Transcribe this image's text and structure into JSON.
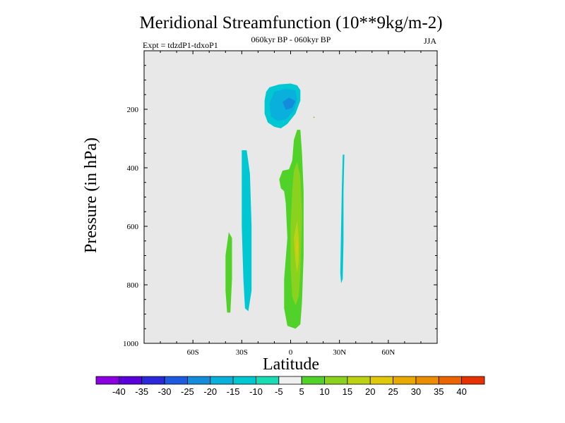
{
  "chart_data": {
    "type": "contour",
    "title": "Meridional Streamfunction (10**9kg/m-2)",
    "subtitle_left": "Expt = tdzdP1-tdxoP1",
    "subtitle_center": "060kyr BP - 060kyr BP",
    "subtitle_right": "JJA",
    "xlabel": "Latitude",
    "ylabel": "Pressure (in hPa)",
    "xlim": [
      -90,
      90
    ],
    "ylim": [
      1000,
      0
    ],
    "xticks": [
      {
        "value": -60,
        "label": "60S"
      },
      {
        "value": -30,
        "label": "30S"
      },
      {
        "value": 0,
        "label": "0"
      },
      {
        "value": 30,
        "label": "30N"
      },
      {
        "value": 60,
        "label": "60N"
      }
    ],
    "yticks": [
      {
        "value": 200,
        "label": "200"
      },
      {
        "value": 400,
        "label": "400"
      },
      {
        "value": 600,
        "label": "600"
      },
      {
        "value": 800,
        "label": "800"
      },
      {
        "value": 1000,
        "label": "1000"
      }
    ],
    "background_color": "#e8e8e8",
    "colorbar": {
      "labels": [
        "-40",
        "-35",
        "-30",
        "-25",
        "-20",
        "-15",
        "-10",
        "-5",
        "5",
        "10",
        "15",
        "20",
        "25",
        "30",
        "35",
        "40"
      ],
      "colors": [
        "#8c00e0",
        "#5a00d8",
        "#2a28d8",
        "#1e5ae0",
        "#148cdc",
        "#0ab0dc",
        "#00c8d2",
        "#18dcb4",
        "#f0f0f0",
        "#50d228",
        "#8ad21e",
        "#bed214",
        "#e0c80a",
        "#e8aa00",
        "#ec8c00",
        "#ec6400",
        "#e63200"
      ]
    },
    "regions": [
      {
        "name": "upper-negative-cell",
        "level": "-10",
        "points": [
          [
            -13,
            125
          ],
          [
            -7,
            115
          ],
          [
            0,
            112
          ],
          [
            4,
            118
          ],
          [
            6,
            135
          ],
          [
            6,
            170
          ],
          [
            3,
            215
          ],
          [
            -2,
            250
          ],
          [
            -6,
            265
          ],
          [
            -10,
            260
          ],
          [
            -14,
            245
          ],
          [
            -16,
            215
          ],
          [
            -16,
            170
          ],
          [
            -15,
            140
          ]
        ]
      },
      {
        "name": "upper-negative-cell",
        "level": "-15",
        "points": [
          [
            -10,
            140
          ],
          [
            -3,
            130
          ],
          [
            3,
            135
          ],
          [
            4,
            165
          ],
          [
            2,
            205
          ],
          [
            -3,
            235
          ],
          [
            -8,
            240
          ],
          [
            -12,
            225
          ],
          [
            -13,
            180
          ]
        ]
      },
      {
        "name": "upper-negative-cell-core",
        "level": "-20",
        "points": [
          [
            -5,
            175
          ],
          [
            -1,
            160
          ],
          [
            3,
            172
          ],
          [
            1,
            195
          ],
          [
            -3,
            202
          ]
        ]
      },
      {
        "name": "lower-positive-cell",
        "level": "5",
        "points": [
          [
            4,
            270
          ],
          [
            6,
            270
          ],
          [
            7,
            350
          ],
          [
            8,
            480
          ],
          [
            8,
            700
          ],
          [
            7,
            860
          ],
          [
            6,
            935
          ],
          [
            3,
            950
          ],
          [
            -2,
            940
          ],
          [
            -4,
            880
          ],
          [
            -4,
            780
          ],
          [
            -2,
            640
          ],
          [
            -3,
            520
          ],
          [
            -4,
            480
          ],
          [
            -6,
            470
          ],
          [
            -7,
            440
          ],
          [
            -5,
            410
          ],
          [
            -1,
            405
          ],
          [
            1,
            375
          ],
          [
            2,
            305
          ]
        ]
      },
      {
        "name": "lower-positive-cell",
        "level": "10",
        "points": [
          [
            4,
            380
          ],
          [
            6,
            430
          ],
          [
            7,
            560
          ],
          [
            6,
            760
          ],
          [
            5,
            840
          ],
          [
            3,
            870
          ],
          [
            1,
            840
          ],
          [
            0,
            740
          ],
          [
            0,
            600
          ],
          [
            1,
            480
          ],
          [
            2,
            410
          ]
        ]
      },
      {
        "name": "lower-positive-cell-core",
        "level": "15",
        "points": [
          [
            4,
            580
          ],
          [
            5,
            640
          ],
          [
            5,
            720
          ],
          [
            4,
            760
          ],
          [
            3,
            720
          ],
          [
            2,
            640
          ]
        ]
      },
      {
        "name": "lower-positive-cell-core",
        "level": "20",
        "points": [
          [
            4,
            640
          ],
          [
            4.7,
            670
          ],
          [
            4,
            710
          ],
          [
            3.3,
            670
          ]
        ]
      },
      {
        "name": "small-positive-blob",
        "level": "5",
        "points": [
          [
            14,
            225
          ],
          [
            15,
            227
          ],
          [
            14,
            230
          ]
        ]
      },
      {
        "name": "negative-strip-30s",
        "level": "-10",
        "points": [
          [
            -30,
            340
          ],
          [
            -27,
            340
          ],
          [
            -25,
            420
          ],
          [
            -24,
            600
          ],
          [
            -24,
            820
          ],
          [
            -26,
            890
          ],
          [
            -28,
            880
          ],
          [
            -29,
            780
          ],
          [
            -30,
            600
          ],
          [
            -30,
            440
          ]
        ]
      },
      {
        "name": "positive-strip-40s",
        "level": "5",
        "points": [
          [
            -38,
            620
          ],
          [
            -36,
            640
          ],
          [
            -36,
            780
          ],
          [
            -37,
            895
          ],
          [
            -39,
            895
          ],
          [
            -40,
            820
          ],
          [
            -40,
            700
          ]
        ]
      },
      {
        "name": "negative-strip-32n",
        "level": "-10",
        "points": [
          [
            32,
            355
          ],
          [
            33,
            355
          ],
          [
            32.5,
            480
          ],
          [
            32.5,
            650
          ],
          [
            32,
            780
          ],
          [
            31,
            795
          ],
          [
            30.5,
            760
          ],
          [
            31,
            600
          ],
          [
            31.5,
            460
          ]
        ]
      }
    ]
  }
}
